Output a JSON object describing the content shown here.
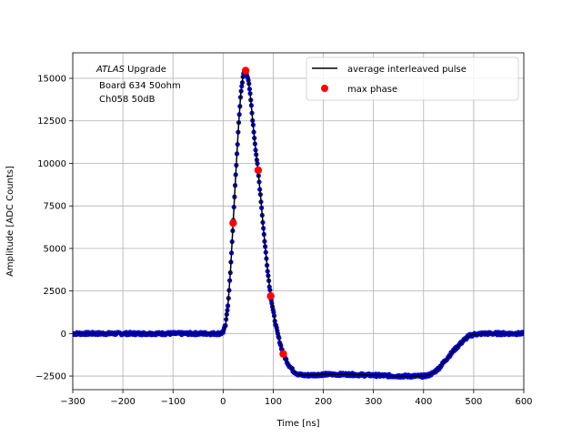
{
  "chart_data": {
    "type": "scatter",
    "title": "",
    "xlabel": "Time [ns]",
    "ylabel": "Amplitude [ADC Counts]",
    "xlim": [
      -300,
      600
    ],
    "ylim": [
      -3300,
      16500
    ],
    "xticks": [
      -300,
      -200,
      -100,
      0,
      100,
      200,
      300,
      400,
      500,
      600
    ],
    "xtick_labels": [
      "−300",
      "−200",
      "−100",
      "0",
      "100",
      "200",
      "300",
      "400",
      "500",
      "600"
    ],
    "yticks": [
      -2500,
      0,
      2500,
      5000,
      7500,
      10000,
      12500,
      15000
    ],
    "ytick_labels": [
      "−2500",
      "0",
      "2500",
      "5000",
      "7500",
      "10000",
      "12500",
      "15000"
    ],
    "grid": true,
    "legend_position": "top-right",
    "annotation": {
      "experiment": "ATLAS",
      "experiment_suffix": " Upgrade",
      "line2": "Board 634 50ohm",
      "line3": "Ch058 50dB"
    },
    "series": [
      {
        "name": "average interleaved pulse",
        "kind": "line",
        "color": "#000000",
        "x": [
          -300,
          -200,
          -100,
          -20,
          -5,
          0,
          5,
          10,
          15,
          20,
          25,
          30,
          35,
          40,
          45,
          50,
          55,
          60,
          65,
          70,
          75,
          80,
          85,
          90,
          95,
          100,
          105,
          110,
          115,
          120,
          130,
          140,
          150,
          160,
          170,
          200,
          250,
          300,
          350,
          390,
          400,
          410,
          420,
          430,
          440,
          450,
          460,
          470,
          480,
          490,
          500,
          520,
          550,
          600
        ],
        "y": [
          0,
          0,
          0,
          0,
          0,
          100,
          500,
          1800,
          3800,
          6500,
          9200,
          11800,
          14000,
          15200,
          15450,
          15000,
          13800,
          12200,
          10800,
          9500,
          8000,
          6300,
          4800,
          3400,
          2200,
          1300,
          500,
          -150,
          -700,
          -1200,
          -1800,
          -2200,
          -2400,
          -2450,
          -2450,
          -2400,
          -2400,
          -2450,
          -2500,
          -2500,
          -2500,
          -2450,
          -2300,
          -2050,
          -1700,
          -1350,
          -1000,
          -700,
          -400,
          -150,
          -50,
          0,
          0,
          0
        ]
      },
      {
        "name": "samples",
        "kind": "scatter",
        "color": "#0000cc"
      },
      {
        "name": "max phase",
        "kind": "scatter",
        "color": "#ff0000",
        "x": [
          20,
          45,
          70,
          95,
          120
        ],
        "y": [
          6500,
          15450,
          9600,
          2200,
          -1200
        ]
      }
    ]
  }
}
